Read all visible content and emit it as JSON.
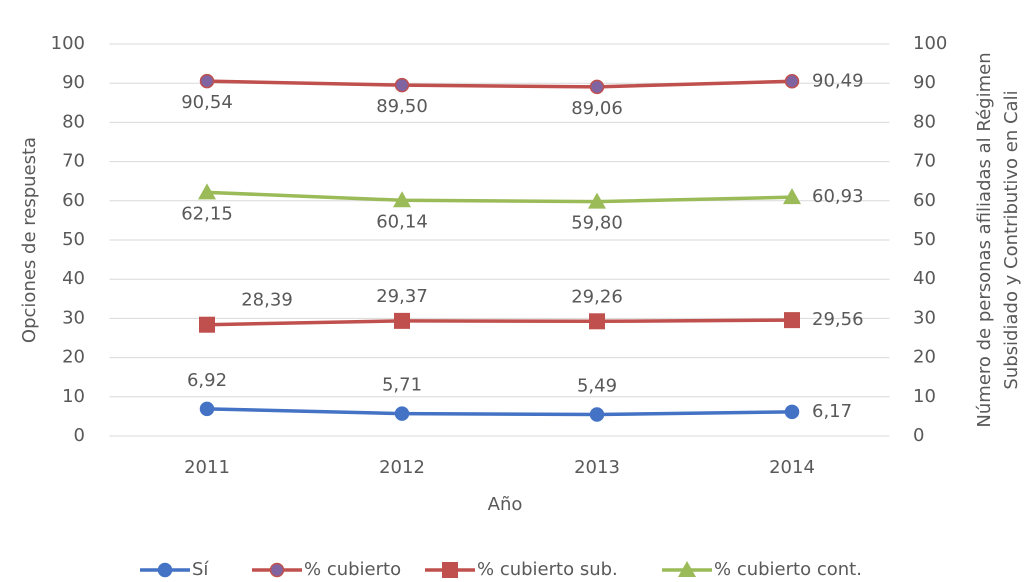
{
  "chart_data": {
    "type": "line",
    "x_label": "Año",
    "y_label": "Opciones de respuesta",
    "y2_label": [
      "Número de personas afiliadas al Régimen",
      "Subsidiado y Contributivo en Cali"
    ],
    "categories": [
      "2011",
      "2012",
      "2013",
      "2014"
    ],
    "series": [
      {
        "name": "Sí",
        "color": "#4472c4",
        "marker": "circle",
        "values": [
          6.92,
          5.71,
          5.49,
          6.17
        ],
        "value_labels": [
          "6,92",
          "5,71",
          "5,49",
          "6,17"
        ]
      },
      {
        "name": "% cubierto",
        "color": "#c0504d",
        "marker_color": "#8064a2",
        "marker": "circle",
        "values": [
          90.54,
          89.5,
          89.06,
          90.49
        ],
        "value_labels": [
          "90,54",
          "89,50",
          "89,06",
          "90,49"
        ]
      },
      {
        "name": "% cubierto sub.",
        "color": "#c0504d",
        "marker": "square",
        "values": [
          28.39,
          29.37,
          29.26,
          29.56
        ],
        "value_labels": [
          "28,39",
          "29,37",
          "29,26",
          "29,56"
        ]
      },
      {
        "name": "% cubierto cont.",
        "color": "#9bbb59",
        "marker": "triangle",
        "values": [
          62.15,
          60.14,
          59.8,
          60.93
        ],
        "value_labels": [
          "62,15",
          "60,14",
          "59,80",
          "60,93"
        ]
      }
    ],
    "ylim": [
      0,
      100
    ],
    "yticks": [
      0,
      10,
      20,
      30,
      40,
      50,
      60,
      70,
      80,
      90,
      100
    ],
    "y2lim": [
      0,
      100
    ],
    "y2ticks": [
      0,
      10,
      20,
      30,
      40,
      50,
      60,
      70,
      80,
      90,
      100
    ],
    "grid": true,
    "legend": "bottom"
  }
}
